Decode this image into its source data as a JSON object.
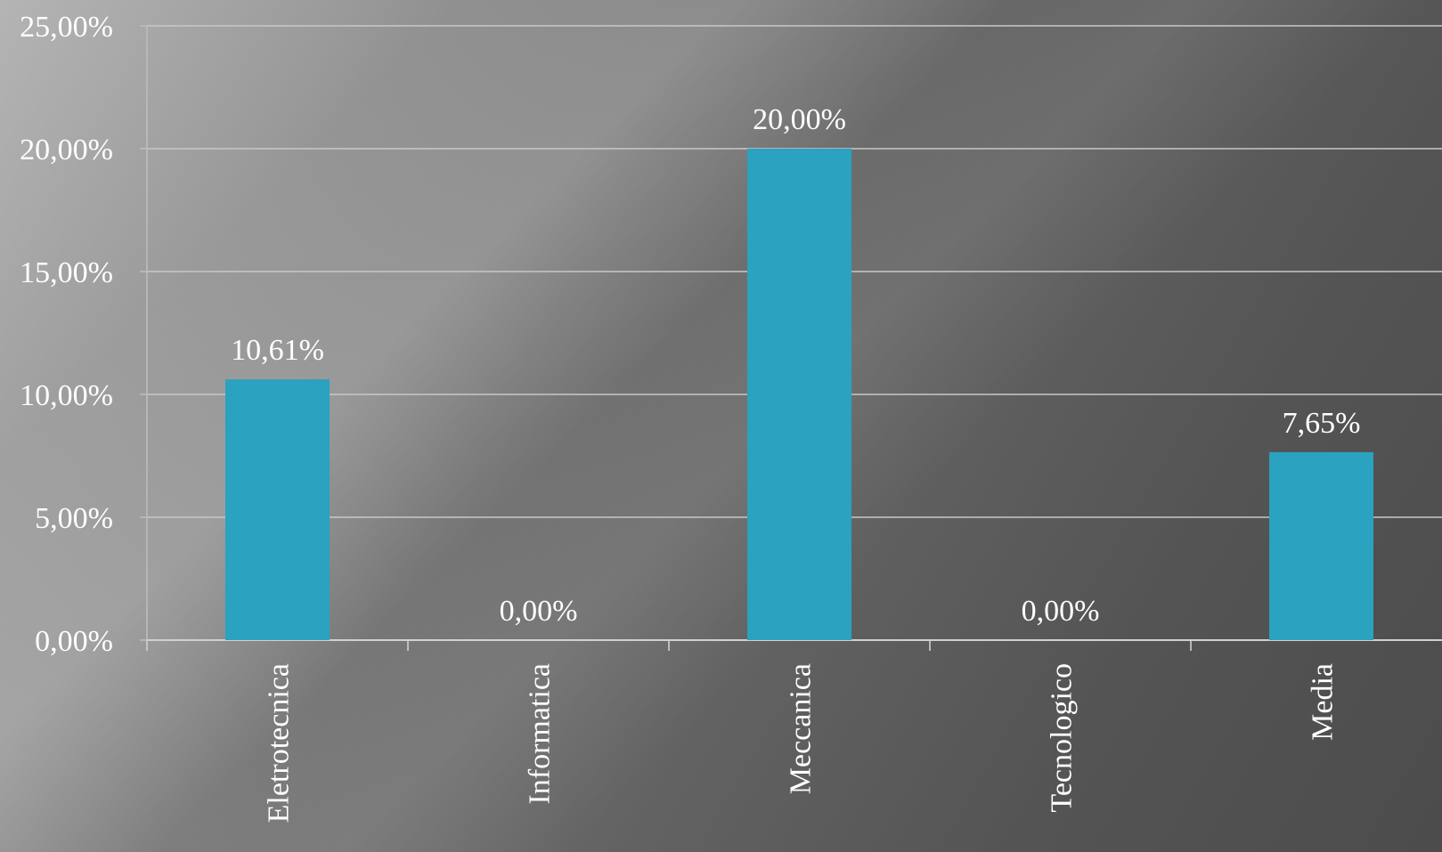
{
  "chart_data": {
    "type": "bar",
    "categories": [
      "Eletrotecnica",
      "Informatica",
      "Meccanica",
      "Tecnologico",
      "Media"
    ],
    "values": [
      10.61,
      0.0,
      20.0,
      0.0,
      7.65
    ],
    "data_labels": [
      "10,61%",
      "0,00%",
      "20,00%",
      "0,00%",
      "7,65%"
    ],
    "y_ticks": [
      0,
      5,
      10,
      15,
      20,
      25
    ],
    "y_tick_labels": [
      "0,00%",
      "5,00%",
      "10,00%",
      "15,00%",
      "20,00%",
      "25,00%"
    ],
    "ylim": [
      0,
      25
    ],
    "grid": true,
    "legend": "none",
    "bar_color": "#2aa2c0",
    "gridline_color": "#c8c8c8",
    "title": "",
    "xlabel": "",
    "ylabel": ""
  }
}
